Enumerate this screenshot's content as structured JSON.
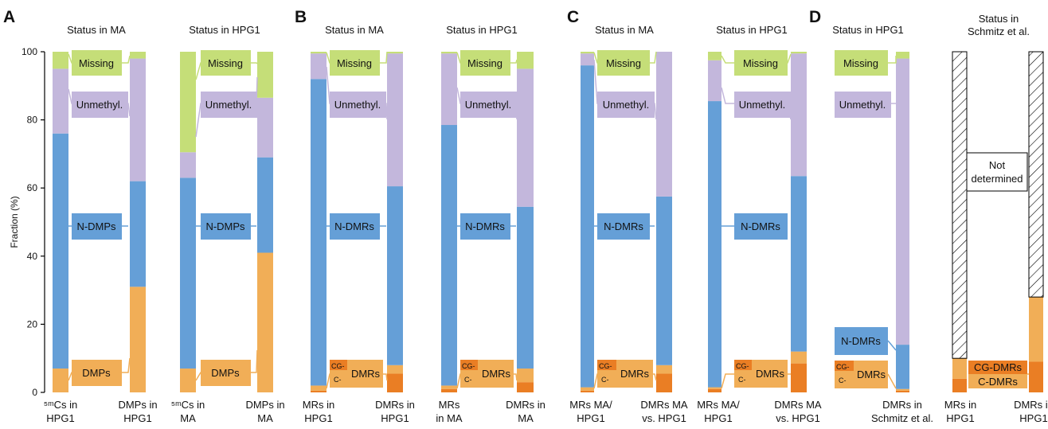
{
  "figure": {
    "panel_letters": [
      "A",
      "B",
      "C",
      "D"
    ],
    "y_axis_label": "Fraction (%)",
    "titles": {
      "a_left": "Status in MA",
      "a_right": "Status in HPG1",
      "b_left": "Status in MA",
      "b_right": "Status in HPG1",
      "c_left": "Status in MA",
      "c_right": "Status in HPG1",
      "d_left": "Status in HPG1",
      "d_right_line1": "Status in",
      "d_right_line2": "Schmitz et al."
    },
    "category_labels": {
      "missing": "Missing",
      "unmethyl": "Unmethyl.",
      "n_dmps": "N-DMPs",
      "dmps": "DMPs",
      "n_dmrs": "N-DMRs",
      "dmrs": "DMRs",
      "cg": "CG-",
      "c": "C-",
      "cg_dmrs": "CG-DMRs",
      "c_dmrs": "C-DMRs",
      "not_determined_line1": "Not",
      "not_determined_line2": "determined"
    },
    "x_labels": {
      "a1_line1": "⁵ᵐCs in",
      "a1_line2": "HPG1",
      "a2_line1": "DMPs in",
      "a2_line2": "HPG1",
      "a3_line1": "⁵ᵐCs in",
      "a3_line2": "MA",
      "a4_line1": "DMPs in",
      "a4_line2": "MA",
      "b1_line1": "MRs in",
      "b1_line2": "HPG1",
      "b2_line1": "DMRs in",
      "b2_line2": "HPG1",
      "b3_line1": "MRs",
      "b3_line2": "in MA",
      "b4_line1": "DMRs in",
      "b4_line2": "MA",
      "c1_line1": "MRs MA/",
      "c1_line2": "HPG1",
      "c2_line1": "DMRs MA",
      "c2_line2": "vs. HPG1",
      "c3_line1": "MRs MA/",
      "c3_line2": "HPG1",
      "c4_line1": "DMRs MA",
      "c4_line2": "vs. HPG1",
      "d1_line1": "DMRs in",
      "d1_line2": "Schmitz et al.",
      "d2_line1": "MRs in",
      "d2_line2": "HPG1",
      "d3_line1": "DMRs in",
      "d3_line2": "HPG1"
    },
    "colors": {
      "missing": "#c5de78",
      "unmethyl": "#c3b7dc",
      "n_dm": "#659fd7",
      "dm": "#f1ae57",
      "cg": "#ea7e24",
      "axis": "#000000"
    }
  },
  "chart_data": {
    "type": "stacked_bar",
    "ylabel": "Fraction (%)",
    "ylim": [
      0,
      100
    ],
    "yticks": [
      0,
      20,
      40,
      60,
      80,
      100
    ],
    "stack_order_bottom_to_top": [
      "cg",
      "dm",
      "n_dm",
      "unmethyl",
      "missing",
      "not_determined"
    ],
    "bars": [
      {
        "panel": "A",
        "x": "5mCs in HPG1",
        "cg": 0,
        "dm": 7,
        "n_dm": 69,
        "unmethyl": 19,
        "missing": 5
      },
      {
        "panel": "A",
        "x": "DMPs in HPG1",
        "cg": 0,
        "dm": 31,
        "n_dm": 31,
        "unmethyl": 36,
        "missing": 2
      },
      {
        "panel": "A",
        "x": "5mCs in MA",
        "cg": 0,
        "dm": 7,
        "n_dm": 56,
        "unmethyl": 7.5,
        "missing": 29.5
      },
      {
        "panel": "A",
        "x": "DMPs in MA",
        "cg": 0,
        "dm": 41,
        "n_dm": 28,
        "unmethyl": 17.5,
        "missing": 13.5
      },
      {
        "panel": "B",
        "x": "MRs in HPG1",
        "cg": 0.5,
        "dm": 1.5,
        "n_dm": 90,
        "unmethyl": 7.5,
        "missing": 0.5
      },
      {
        "panel": "B",
        "x": "DMRs in HPG1",
        "cg": 5.5,
        "dm": 2.5,
        "n_dm": 52.5,
        "unmethyl": 39,
        "missing": 0.5
      },
      {
        "panel": "B",
        "x": "MRs in MA",
        "cg": 1,
        "dm": 1,
        "n_dm": 76.5,
        "unmethyl": 21,
        "missing": 0.5
      },
      {
        "panel": "B",
        "x": "DMRs in MA",
        "cg": 3,
        "dm": 4,
        "n_dm": 47.5,
        "unmethyl": 40.5,
        "missing": 5
      },
      {
        "panel": "C",
        "x": "MRs MA/HPG1",
        "cg": 0.5,
        "dm": 1,
        "n_dm": 94.5,
        "unmethyl": 3.5,
        "missing": 0.5
      },
      {
        "panel": "C",
        "x": "DMRs MA vs. HPG1",
        "cg": 5.5,
        "dm": 2.5,
        "n_dm": 49.5,
        "unmethyl": 42.5,
        "missing": 0
      },
      {
        "panel": "C",
        "x": "MRs MA/HPG1",
        "cg": 1,
        "dm": 0.5,
        "n_dm": 84,
        "unmethyl": 12,
        "missing": 2.5
      },
      {
        "panel": "C",
        "x": "DMRs MA vs. HPG1",
        "cg": 8.5,
        "dm": 3.5,
        "n_dm": 51.5,
        "unmethyl": 36,
        "missing": 0.5
      },
      {
        "panel": "D",
        "x": "DMRs in Schmitz et al.",
        "cg": 0.5,
        "dm": 0.5,
        "n_dm": 13,
        "unmethyl": 84,
        "missing": 2
      },
      {
        "panel": "D",
        "x": "MRs in HPG1",
        "cg": 4,
        "dm": 6,
        "not_determined": 90
      },
      {
        "panel": "D",
        "x": "DMRs in HPG1",
        "cg": 9,
        "dm": 19,
        "not_determined": 72
      }
    ]
  }
}
